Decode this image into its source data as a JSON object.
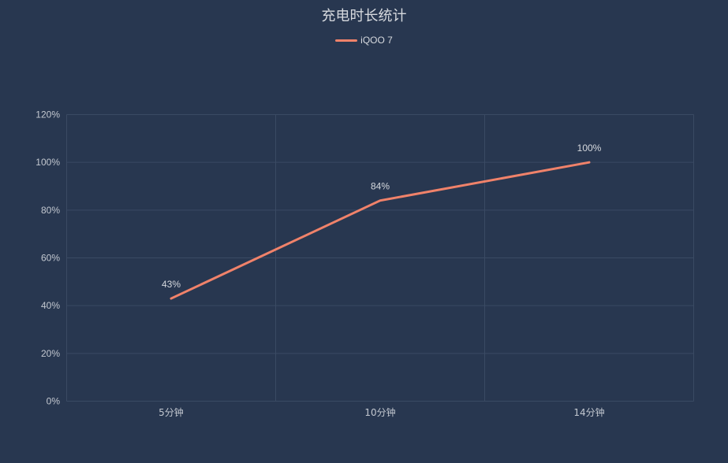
{
  "chart_data": {
    "type": "line",
    "title": "充电时长统计",
    "categories": [
      "5分钟",
      "10分钟",
      "14分钟"
    ],
    "series": [
      {
        "name": "iQOO 7",
        "values": [
          43,
          84,
          100
        ],
        "labels": [
          "43%",
          "84%",
          "100%"
        ],
        "color": "#f0826a"
      }
    ],
    "xlabel": "",
    "ylabel": "",
    "ylim": [
      0,
      120
    ],
    "yticks": [
      "0%",
      "20%",
      "40%",
      "60%",
      "80%",
      "100%",
      "120%"
    ],
    "grid": true,
    "legend_position": "top"
  },
  "colors": {
    "background": "#283750",
    "grid": "#3a4a63",
    "text": "#c3c8d0"
  }
}
